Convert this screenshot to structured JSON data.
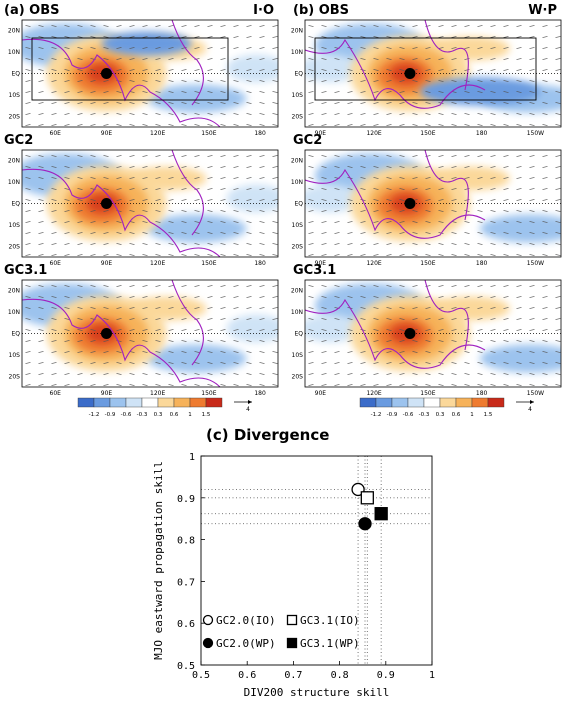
{
  "maps": {
    "panels": [
      {
        "label": "(a) OBS",
        "region": "I·O"
      },
      {
        "label": "(b) OBS",
        "region": "W·P"
      },
      {
        "label": "GC2"
      },
      {
        "label": "GC2"
      },
      {
        "label": "GC3.1"
      },
      {
        "label": "GC3.1"
      }
    ],
    "lat_labels": [
      "20N",
      "10N",
      "EQ",
      "10S",
      "20S"
    ],
    "lon_labels_io": [
      "60E",
      "90E",
      "120E",
      "150E",
      "180"
    ],
    "lon_labels_wp": [
      "90E",
      "120E",
      "150E",
      "180",
      "150W"
    ],
    "colorbar_labels": [
      "-1.2",
      "-0.9",
      "-0.6",
      "-0.3",
      "0.3",
      "0.6",
      "1",
      "1.5"
    ],
    "vector_scale": "4"
  },
  "chart_data": {
    "type": "scatter",
    "title": "(c) Divergence",
    "xlabel": "DIV200 structure skill",
    "ylabel": "MJO eastward propagation skill",
    "xlim": [
      0.5,
      1
    ],
    "ylim": [
      0.5,
      1
    ],
    "xticks": [
      0.5,
      0.6,
      0.7,
      0.8,
      0.9,
      1
    ],
    "yticks": [
      0.5,
      0.6,
      0.7,
      0.8,
      0.9,
      1
    ],
    "reference_lines": true,
    "legend": "lower left",
    "series": [
      {
        "name": "GC2.0(IO)",
        "color": "#000000",
        "marker": "circle",
        "filled": false,
        "x": [
          0.84
        ],
        "values": [
          0.92
        ]
      },
      {
        "name": "GC3.1(IO)",
        "color": "#000000",
        "marker": "square",
        "filled": false,
        "x": [
          0.86
        ],
        "values": [
          0.9
        ]
      },
      {
        "name": "GC2.0(WP)",
        "color": "#000000",
        "marker": "circle",
        "filled": true,
        "x": [
          0.855
        ],
        "values": [
          0.838
        ]
      },
      {
        "name": "GC3.1(WP)",
        "color": "#000000",
        "marker": "square",
        "filled": true,
        "x": [
          0.89
        ],
        "values": [
          0.862
        ]
      }
    ]
  }
}
